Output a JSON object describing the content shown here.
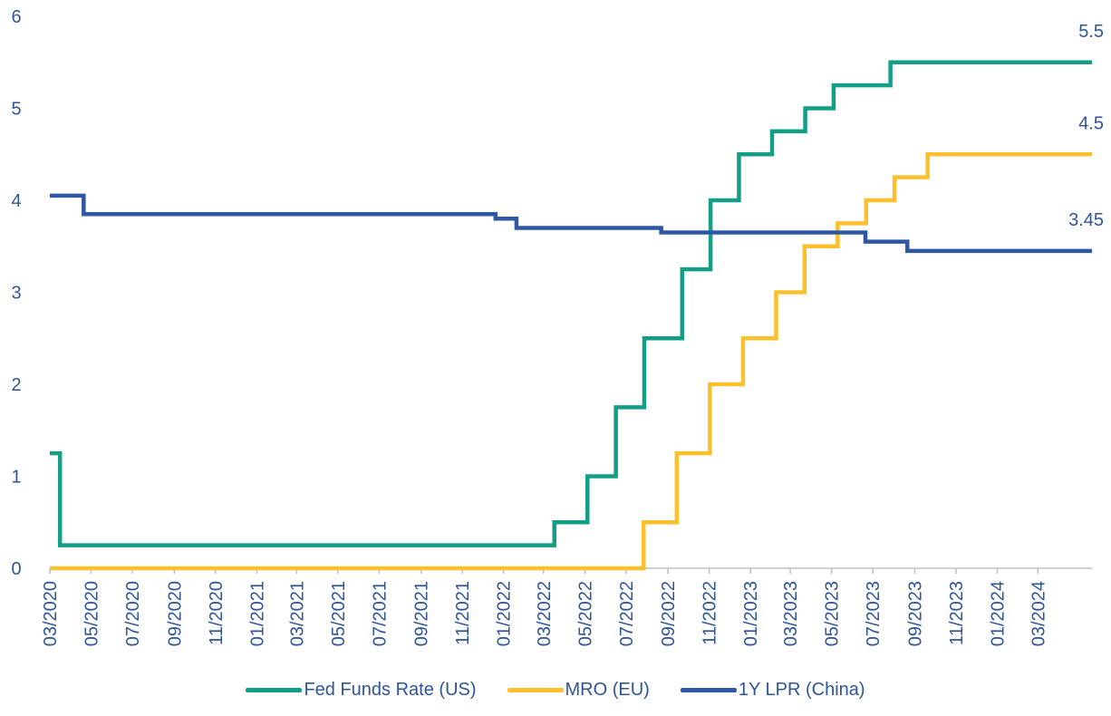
{
  "chart_data": {
    "type": "line",
    "title": "",
    "xlabel": "",
    "ylabel": "",
    "ylim": [
      0,
      6
    ],
    "yticks": [
      "0",
      "1",
      "2",
      "3",
      "4",
      "5",
      "6"
    ],
    "xlim": [
      "2020-03-01",
      "2024-05-20"
    ],
    "xtick_labels": [
      "03/2020",
      "05/2020",
      "07/2020",
      "09/2020",
      "11/2020",
      "01/2021",
      "03/2021",
      "05/2021",
      "07/2021",
      "09/2021",
      "11/2021",
      "01/2022",
      "03/2022",
      "05/2022",
      "07/2022",
      "09/2022",
      "11/2022",
      "01/2023",
      "03/2023",
      "05/2023",
      "07/2023",
      "09/2023",
      "11/2023",
      "01/2024",
      "03/2024"
    ],
    "xtick_dates": [
      "2020-03-01",
      "2020-05-01",
      "2020-07-01",
      "2020-09-01",
      "2020-11-01",
      "2021-01-01",
      "2021-03-01",
      "2021-05-01",
      "2021-07-01",
      "2021-09-01",
      "2021-11-01",
      "2022-01-01",
      "2022-03-01",
      "2022-05-01",
      "2022-07-01",
      "2022-09-01",
      "2022-11-01",
      "2023-01-01",
      "2023-03-01",
      "2023-05-01",
      "2023-07-01",
      "2023-09-01",
      "2023-11-01",
      "2024-01-01",
      "2024-03-01"
    ],
    "grid": false,
    "legend_position": "bottom",
    "series": [
      {
        "name": "Fed Funds Rate (US)",
        "color": "#139e86",
        "end_label": "5.5",
        "steps": [
          [
            "2020-03-01",
            1.25
          ],
          [
            "2020-03-16",
            0.25
          ],
          [
            "2022-03-17",
            0.5
          ],
          [
            "2022-05-05",
            1.0
          ],
          [
            "2022-06-16",
            1.75
          ],
          [
            "2022-07-28",
            2.5
          ],
          [
            "2022-09-22",
            3.25
          ],
          [
            "2022-11-03",
            4.0
          ],
          [
            "2022-12-15",
            4.5
          ],
          [
            "2023-02-02",
            4.75
          ],
          [
            "2023-03-23",
            5.0
          ],
          [
            "2023-05-04",
            5.25
          ],
          [
            "2023-07-27",
            5.5
          ],
          [
            "2024-05-20",
            5.5
          ]
        ]
      },
      {
        "name": "MRO (EU)",
        "color": "#fbc02d",
        "end_label": "4.5",
        "steps": [
          [
            "2020-03-01",
            0.0
          ],
          [
            "2022-07-27",
            0.5
          ],
          [
            "2022-09-14",
            1.25
          ],
          [
            "2022-11-02",
            2.0
          ],
          [
            "2022-12-21",
            2.5
          ],
          [
            "2023-02-08",
            3.0
          ],
          [
            "2023-03-22",
            3.5
          ],
          [
            "2023-05-10",
            3.75
          ],
          [
            "2023-06-21",
            4.0
          ],
          [
            "2023-08-02",
            4.25
          ],
          [
            "2023-09-20",
            4.5
          ],
          [
            "2024-05-20",
            4.5
          ]
        ]
      },
      {
        "name": "1Y LPR (China)",
        "color": "#2e58a6",
        "end_label": "3.45",
        "steps": [
          [
            "2020-03-01",
            4.05
          ],
          [
            "2020-04-20",
            3.85
          ],
          [
            "2021-12-20",
            3.8
          ],
          [
            "2022-01-20",
            3.7
          ],
          [
            "2022-08-22",
            3.65
          ],
          [
            "2023-06-20",
            3.55
          ],
          [
            "2023-08-21",
            3.45
          ],
          [
            "2024-05-20",
            3.45
          ]
        ]
      }
    ]
  }
}
